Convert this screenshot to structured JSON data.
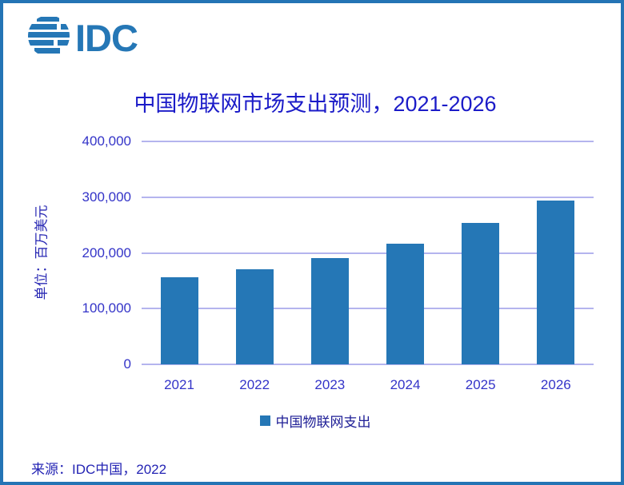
{
  "page": {
    "background": "#ffffff",
    "border_color": "#2474B5"
  },
  "logo": {
    "text": "IDC",
    "color": "#2577B6"
  },
  "title": {
    "text": "中国物联网市场支出预测，2021-2026",
    "color": "#1B1BC8"
  },
  "chart_data": {
    "type": "bar",
    "title": "中国物联网市场支出预测，2021-2026",
    "categories": [
      "2021",
      "2022",
      "2023",
      "2024",
      "2025",
      "2026"
    ],
    "values": [
      157000,
      170000,
      190000,
      217000,
      254000,
      294000
    ],
    "series_name": "中国物联网支出",
    "xlabel": "",
    "ylabel": "单位：百万美元",
    "ylim": [
      0,
      400000
    ],
    "ytick_step": 100000,
    "ytick_labels": [
      "0",
      "100,000",
      "200,000",
      "300,000",
      "400,000"
    ],
    "grid": true,
    "legend_position": "bottom",
    "bar_color": "#2577B6",
    "grid_color": "#B4B4EE",
    "axis_text_color": "#3434C8"
  },
  "legend": {
    "label": "中国物联网支出",
    "swatch_color": "#2577B6",
    "text_color": "#1E1E96"
  },
  "footer": {
    "source": "来源：IDC中国，2022",
    "color": "#2424B4"
  }
}
